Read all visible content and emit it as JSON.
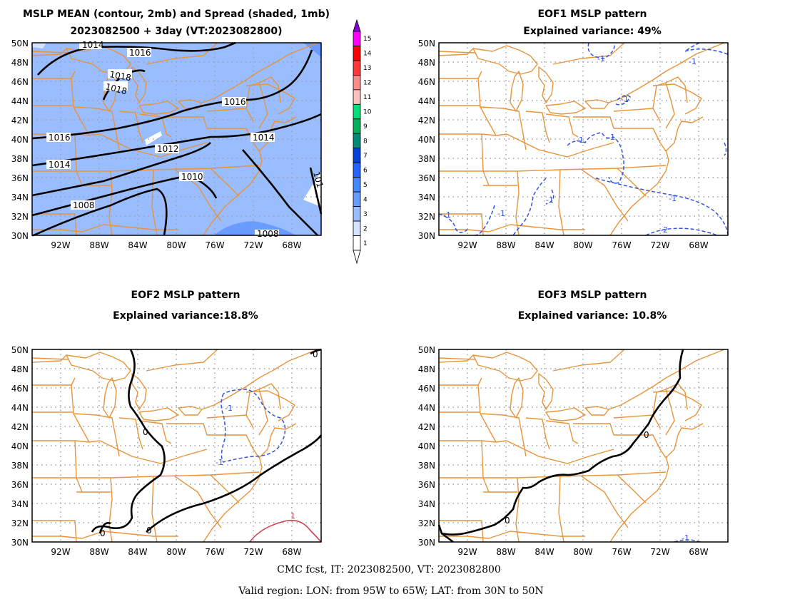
{
  "panels": [
    {
      "id": "mean",
      "title_line1": "MSLP MEAN (contour, 2mb) and Spread (shaded, 1mb)",
      "title_line2": "2023082500 + 3day (VT:2023082800)"
    },
    {
      "id": "eof1",
      "title_line1": "EOF1 MSLP pattern",
      "title_line2": "Explained variance: 49%"
    },
    {
      "id": "eof2",
      "title_line1": "EOF2 MSLP pattern",
      "title_line2": "Explained variance:18.8%"
    },
    {
      "id": "eof3",
      "title_line1": "EOF3 MSLP pattern",
      "title_line2": "Explained variance: 10.8%"
    }
  ],
  "lat_ticks": [
    "50N",
    "48N",
    "46N",
    "44N",
    "42N",
    "40N",
    "38N",
    "36N",
    "34N",
    "32N",
    "30N"
  ],
  "lon_ticks": [
    "92W",
    "88W",
    "84W",
    "80W",
    "76W",
    "72W",
    "68W"
  ],
  "colorbar": {
    "labels": [
      "15",
      "14",
      "13",
      "12",
      "11",
      "10",
      "9",
      "8",
      "7",
      "6",
      "5",
      "4",
      "3",
      "2",
      "1"
    ],
    "colors": [
      "#ff00ff",
      "#ff0000",
      "#ff3838",
      "#ff8a8a",
      "#ffc0c0",
      "#00e07a",
      "#00b05a",
      "#008a78",
      "#0044dd",
      "#2266ff",
      "#4488ff",
      "#6a9bff",
      "#9abdff",
      "#d6e3ff",
      "#ffffff"
    ],
    "top_color": "#8a00d4"
  },
  "contour_labels": {
    "mean": [
      "1014",
      "1016",
      "1018",
      "1018",
      "1016",
      "1016",
      "1014",
      "1014",
      "1012",
      "1010",
      "1008",
      "1008",
      "101"
    ],
    "eof1": [
      "-1",
      "-1",
      "-1",
      "-1",
      "-1",
      "-1",
      "-1",
      "-1",
      "-1",
      "-2"
    ],
    "eof2": [
      "0",
      "0",
      "0",
      "-1",
      "-1",
      "1",
      "0"
    ],
    "eof3": [
      "0",
      "0",
      "-1"
    ]
  },
  "footer": {
    "line1": "CMC fcst, IT: 2023082500, VT: 2023082800",
    "line2": "Valid region: LON: from 95W to 65W; LAT: from 30N to 50N"
  }
}
